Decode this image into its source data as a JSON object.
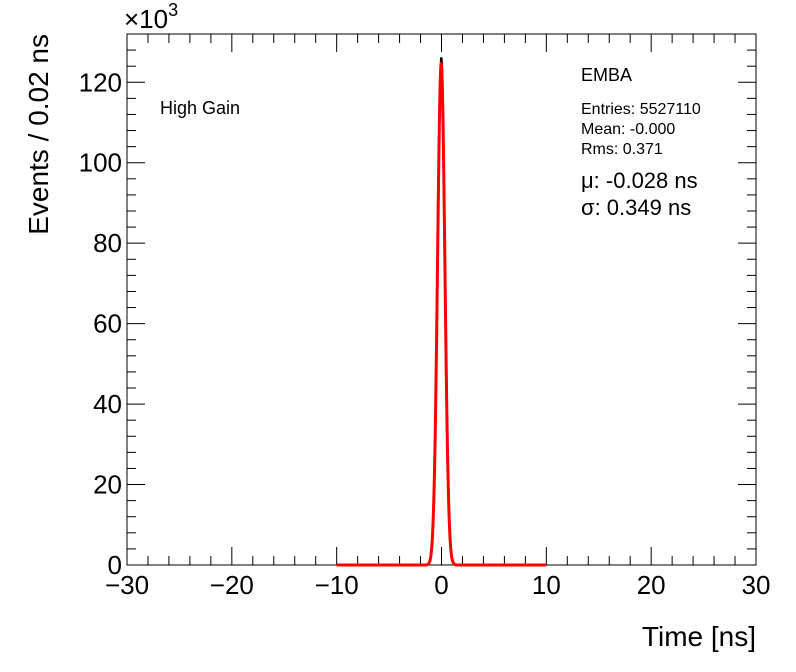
{
  "chart_data": {
    "type": "line",
    "xlabel": "Time [ns]",
    "ylabel": "Events / 0.02 ns",
    "xlim": [
      -30,
      30
    ],
    "ylim": [
      0,
      132000
    ],
    "x_ticks": [
      -30,
      -20,
      -10,
      0,
      10,
      20,
      30
    ],
    "x_tick_labels": [
      "−30",
      "−20",
      "−10",
      "0",
      "10",
      "20",
      "30"
    ],
    "y_ticks": [
      0,
      20000,
      40000,
      60000,
      80000,
      100000,
      120000
    ],
    "y_tick_labels": [
      "0",
      "20",
      "40",
      "60",
      "80",
      "100",
      "120"
    ],
    "y_multiplier": {
      "base": "×10",
      "exponent": "3"
    },
    "annotation": "High Gain",
    "series": [
      {
        "kind": "histogram",
        "color": "#000000",
        "peak_x": -0.028,
        "peak_y": 126000,
        "sigma": 0.349
      },
      {
        "kind": "gaussian-fit",
        "color": "#ff0000",
        "range": [
          -10,
          10
        ],
        "mu": -0.028,
        "sigma": 0.349,
        "amplitude": 124500
      }
    ],
    "stats": {
      "name": "EMBA",
      "entries": "Entries: 5527110",
      "mean": "Mean: -0.000",
      "rms": "Rms: 0.371",
      "mu": "μ: -0.028 ns",
      "sigma": "σ: 0.349 ns"
    },
    "grid": false,
    "legend": "none"
  }
}
